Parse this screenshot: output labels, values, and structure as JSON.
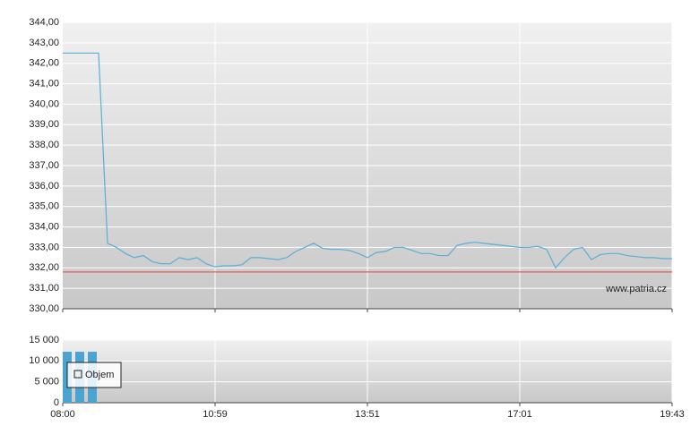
{
  "chart_data": [
    {
      "type": "line",
      "series": [
        {
          "color": "#5aaed8",
          "values": [
            342.5,
            342.5,
            342.5,
            342.5,
            342.5,
            333.2,
            333.0,
            332.7,
            332.5,
            332.6,
            332.3,
            332.2,
            332.2,
            332.5,
            332.4,
            332.5,
            332.2,
            332.05,
            332.1,
            332.1,
            332.15,
            332.5,
            332.5,
            332.45,
            332.4,
            332.5,
            332.8,
            333.0,
            333.2,
            332.95,
            332.9,
            332.9,
            332.85,
            332.7,
            332.5,
            332.75,
            332.8,
            333.0,
            333.0,
            332.85,
            332.7,
            332.7,
            332.6,
            332.6,
            333.1,
            333.2,
            333.25,
            333.2,
            333.15,
            333.1,
            333.05,
            333.0,
            333.0,
            333.05,
            332.9,
            332.0,
            332.5,
            332.9,
            333.0,
            332.4,
            332.65,
            332.7,
            332.7,
            332.6,
            332.55,
            332.5,
            332.5,
            332.45,
            332.45
          ]
        }
      ],
      "ylim": [
        330,
        344
      ],
      "yticks": [
        {
          "value": 330,
          "label": "330,00"
        },
        {
          "value": 331,
          "label": "331,00"
        },
        {
          "value": 332,
          "label": "332,00"
        },
        {
          "value": 333,
          "label": "333,00"
        },
        {
          "value": 334,
          "label": "334,00"
        },
        {
          "value": 335,
          "label": "335,00"
        },
        {
          "value": 336,
          "label": "336,00"
        },
        {
          "value": 337,
          "label": "337,00"
        },
        {
          "value": 338,
          "label": "338,00"
        },
        {
          "value": 339,
          "label": "339,00"
        },
        {
          "value": 340,
          "label": "340,00"
        },
        {
          "value": 341,
          "label": "341,00"
        },
        {
          "value": 342,
          "label": "342,00"
        },
        {
          "value": 343,
          "label": "343,00"
        },
        {
          "value": 344,
          "label": "344,00"
        }
      ],
      "reference_line": 331.8,
      "reference_color": "#e06060",
      "watermark": "www.patria.cz",
      "grid": true
    },
    {
      "type": "bar",
      "series": [
        {
          "name": "Objem",
          "color": "#4ba3d0",
          "values": [
            12200,
            12200,
            12200
          ]
        }
      ],
      "ylim": [
        0,
        15000
      ],
      "yticks": [
        0,
        {
          "value": 5000,
          "label": "5 000"
        },
        {
          "value": 10000,
          "label": "10 000"
        },
        {
          "value": 15000,
          "label": "15 000"
        }
      ],
      "xtick_labels": [
        "08:00",
        "10:59",
        "13:51",
        "17:01",
        "19:43"
      ],
      "grid": true
    }
  ]
}
